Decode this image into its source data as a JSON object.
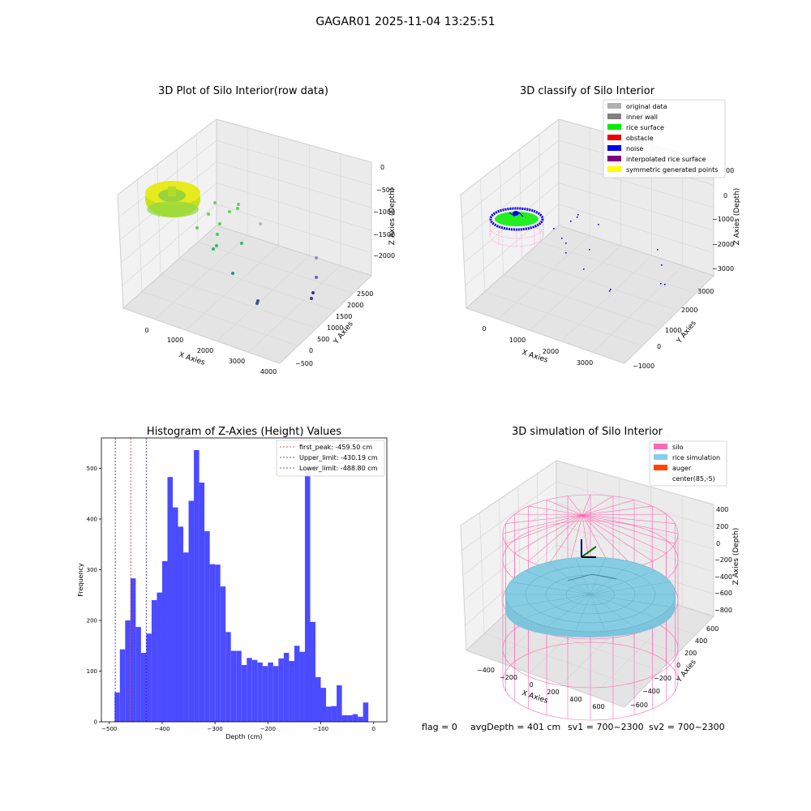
{
  "figure": {
    "title": "GAGAR01 2025-11-04 13:25:51",
    "footer": {
      "flag": "flag = 0",
      "avg_depth": "avgDepth = 401 cm",
      "sv1": "sv1 = 700~2300",
      "sv2": "sv2 = 700~2300"
    }
  },
  "panels": {
    "raw": {
      "title": "3D Plot of Silo Interior(row data)",
      "xlabel": "X Axies",
      "ylabel": "Y Axies",
      "zlabel": "Z Axies (Depth)",
      "x_ticks": [
        "0",
        "1000",
        "2000",
        "3000",
        "4000"
      ],
      "y_ticks": [
        "−500",
        "0",
        "500",
        "1000",
        "1500",
        "2000",
        "2500"
      ],
      "z_ticks": [
        "0",
        "−500",
        "−1000",
        "−1500",
        "−2000"
      ]
    },
    "classify": {
      "title": "3D classify of Silo Interior",
      "xlabel": "X Axies",
      "ylabel": "Y Axies",
      "zlabel": "Z Axies (Depth)",
      "x_ticks": [
        "0",
        "1000",
        "2000",
        "3000"
      ],
      "y_ticks": [
        "−1000",
        "0",
        "1000",
        "2000",
        "3000"
      ],
      "z_ticks": [
        "0",
        "−1000",
        "−2000",
        "−3000"
      ],
      "legend": [
        {
          "label": "original data",
          "color": "#b0b0b0"
        },
        {
          "label": "inner wall",
          "color": "#808080"
        },
        {
          "label": "rice surface",
          "color": "#00ee00"
        },
        {
          "label": "obstacle",
          "color": "#ee0000"
        },
        {
          "label": "noise",
          "color": "#0000ee"
        },
        {
          "label": "interpolated rice surface",
          "color": "#800080"
        },
        {
          "label": "symmetric generated points",
          "color": "#ffff00"
        }
      ],
      "partial_tick": "00"
    },
    "histogram": {
      "title": "Histogram of Z-Axies (Height) Values",
      "xlabel": "Depth (cm)",
      "ylabel": "Frequency",
      "bar_color": "#4b4bff",
      "x_ticks": [
        "−500",
        "−400",
        "−300",
        "−200",
        "−100",
        "0"
      ],
      "y_ticks": [
        "0",
        "100",
        "200",
        "300",
        "400",
        "500"
      ],
      "legend": [
        {
          "label": "first_peak: -459.50 cm",
          "color": "#dd2222"
        },
        {
          "label": "Upper_limit: -430.19 cm",
          "color": "#2222aa"
        },
        {
          "label": "Lower_limit: -488.80 cm",
          "color": "#2222aa"
        }
      ]
    },
    "simulation": {
      "title": "3D simulation of Silo Interior",
      "xlabel": "X Axies",
      "ylabel": "Y Axies",
      "zlabel": "Z Axies (Depth)",
      "x_ticks": [
        "−400",
        "−200",
        "0",
        "200",
        "400",
        "600"
      ],
      "y_ticks": [
        "−600",
        "−400",
        "−200",
        "0",
        "200",
        "400",
        "600"
      ],
      "z_ticks": [
        "400",
        "200",
        "0",
        "−200",
        "−400",
        "−600",
        "−800"
      ],
      "legend": [
        {
          "label": "silo",
          "color": "#ff69b4"
        },
        {
          "label": "rice simulation",
          "color": "#87ceeb"
        },
        {
          "label": "auger",
          "color": "#ff4500"
        },
        {
          "label": "center(85,-5)",
          "color": "#ffffff"
        }
      ]
    }
  },
  "chart_data": [
    {
      "type": "bar",
      "title": "Histogram of Z-Axies (Height) Values",
      "xlabel": "Depth (cm)",
      "ylabel": "Frequency",
      "xlim": [
        -515,
        25
      ],
      "ylim": [
        0,
        560
      ],
      "bins": {
        "start": -490,
        "width": 10,
        "counts": [
          58,
          143,
          200,
          283,
          187,
          136,
          174,
          240,
          255,
          317,
          483,
          423,
          385,
          334,
          436,
          536,
          472,
          376,
          311,
          310,
          267,
          177,
          140,
          140,
          112,
          126,
          122,
          117,
          110,
          117,
          110,
          125,
          136,
          120,
          150,
          138,
          499,
          197,
          88,
          67,
          30,
          31,
          72,
          13,
          13,
          15,
          10,
          38
        ]
      },
      "vlines": [
        {
          "name": "first_peak: -459.50 cm",
          "x": -459.5,
          "color": "#dd2222"
        },
        {
          "name": "Upper_limit: -430.19 cm",
          "x": -430.19,
          "color": "#2222aa"
        },
        {
          "name": "Lower_limit: -488.80 cm",
          "x": -488.8,
          "color": "#2222aa"
        }
      ]
    },
    {
      "type": "scatter",
      "title": "3D Plot of Silo Interior(row data)",
      "xlabel": "X Axies",
      "ylabel": "Y Axies",
      "zlabel": "Z Axies (Depth)",
      "xlim": [
        -500,
        4200
      ],
      "ylim": [
        -600,
        2800
      ],
      "zlim": [
        -2300,
        100
      ]
    },
    {
      "type": "scatter",
      "title": "3D classify of Silo Interior",
      "xlabel": "X Axies",
      "ylabel": "Y Axies",
      "zlabel": "Z Axies (Depth)",
      "xlim": [
        -500,
        3500
      ],
      "ylim": [
        -1200,
        3500
      ],
      "zlim": [
        -3300,
        500
      ]
    },
    {
      "type": "scatter",
      "title": "3D simulation of Silo Interior",
      "xlabel": "X Axies",
      "ylabel": "Y Axies",
      "zlabel": "Z Axies (Depth)",
      "xlim": [
        -600,
        700
      ],
      "ylim": [
        -700,
        700
      ],
      "zlim": [
        -900,
        450
      ]
    }
  ]
}
